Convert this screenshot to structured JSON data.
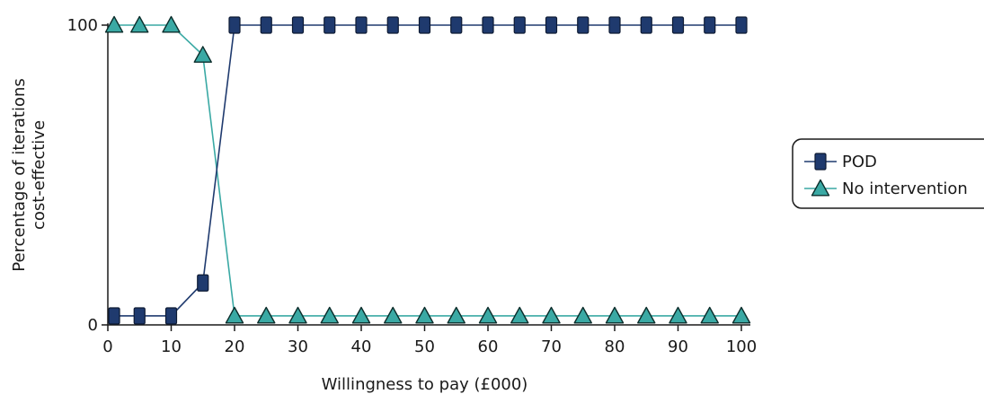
{
  "chart_data": {
    "type": "line",
    "xlabel": "Willingness to pay (£000)",
    "ylabel": "Percentage of iterations cost-effective",
    "ylabel_lines": [
      "Percentage of iterations",
      "cost-effective"
    ],
    "xlim": [
      0,
      100
    ],
    "ylim": [
      0,
      100
    ],
    "xticks": [
      0,
      10,
      20,
      30,
      40,
      50,
      60,
      70,
      80,
      90,
      100
    ],
    "yticks": [
      0,
      100
    ],
    "x": [
      1,
      5,
      10,
      15,
      20,
      25,
      30,
      35,
      40,
      45,
      50,
      55,
      60,
      65,
      70,
      75,
      80,
      85,
      90,
      95,
      100
    ],
    "grid": false,
    "legend_position": "right",
    "series": [
      {
        "name": "POD",
        "marker": "square",
        "color": "#1f3a6e",
        "values": [
          3,
          3,
          3,
          14,
          100,
          100,
          100,
          100,
          100,
          100,
          100,
          100,
          100,
          100,
          100,
          100,
          100,
          100,
          100,
          100,
          100
        ]
      },
      {
        "name": "No intervention",
        "marker": "triangle",
        "color": "#3aa9a4",
        "values": [
          100,
          100,
          100,
          90,
          3,
          3,
          3,
          3,
          3,
          3,
          3,
          3,
          3,
          3,
          3,
          3,
          3,
          3,
          3,
          3,
          3
        ]
      }
    ]
  }
}
